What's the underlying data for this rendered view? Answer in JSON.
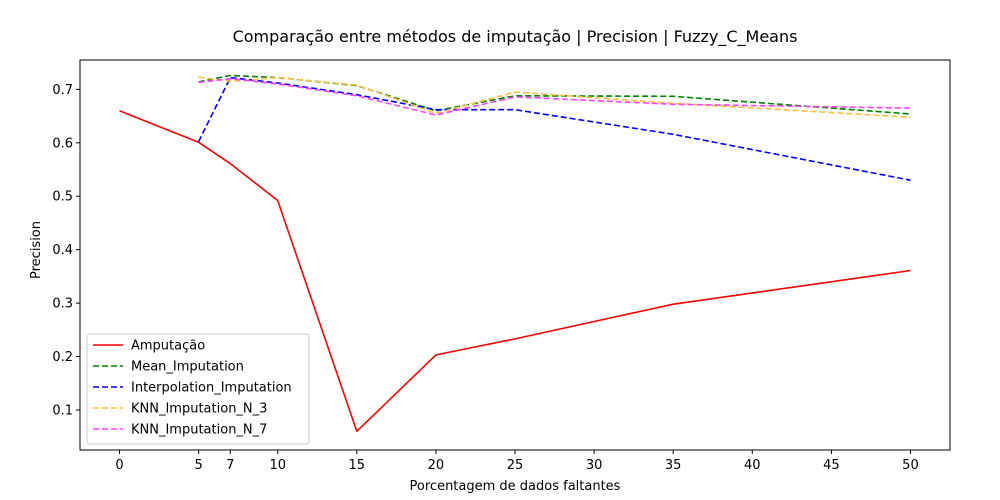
{
  "chart_data": {
    "type": "line",
    "title": "Comparação entre métodos de imputação | Precision | Fuzzy_C_Means",
    "xlabel": "Porcentagem de dados faltantes",
    "ylabel": "Precision",
    "xlim": [
      -2.5,
      52.5
    ],
    "ylim": [
      0.025,
      0.755
    ],
    "xticks": [
      0,
      5,
      7,
      10,
      15,
      20,
      25,
      30,
      35,
      40,
      45,
      50
    ],
    "yticks": [
      0.1,
      0.2,
      0.3,
      0.4,
      0.5,
      0.6,
      0.7
    ],
    "grid": false,
    "legend_position": "lower-left",
    "series": [
      {
        "name": "Amputação",
        "color": "#ff0000",
        "dash": "solid",
        "x": [
          0,
          5,
          7,
          10,
          15,
          20,
          25,
          35,
          50
        ],
        "y": [
          0.66,
          0.601,
          0.561,
          0.492,
          0.06,
          0.203,
          0.233,
          0.298,
          0.361
        ]
      },
      {
        "name": "Mean_Imputation",
        "color": "#008000",
        "dash": "dashed",
        "x": [
          5,
          7,
          10,
          15,
          20,
          25,
          35,
          50
        ],
        "y": [
          0.714,
          0.726,
          0.722,
          0.707,
          0.66,
          0.688,
          0.687,
          0.654
        ]
      },
      {
        "name": "Interpolation_Imputation",
        "color": "#0000ff",
        "dash": "dashed",
        "x": [
          5,
          7,
          10,
          15,
          20,
          25,
          35,
          50
        ],
        "y": [
          0.602,
          0.722,
          0.712,
          0.69,
          0.662,
          0.662,
          0.616,
          0.53
        ]
      },
      {
        "name": "KNN_Imputation_N_3",
        "color": "#ffbf3f",
        "dash": "dashed",
        "x": [
          5,
          7,
          10,
          15,
          20,
          25,
          35,
          50
        ],
        "y": [
          0.723,
          0.715,
          0.722,
          0.708,
          0.655,
          0.695,
          0.674,
          0.648
        ]
      },
      {
        "name": "KNN_Imputation_N_7",
        "color": "#ff40ff",
        "dash": "dashed",
        "x": [
          5,
          7,
          10,
          15,
          20,
          25,
          35,
          50
        ],
        "y": [
          0.713,
          0.72,
          0.71,
          0.688,
          0.652,
          0.686,
          0.672,
          0.665
        ]
      }
    ]
  }
}
